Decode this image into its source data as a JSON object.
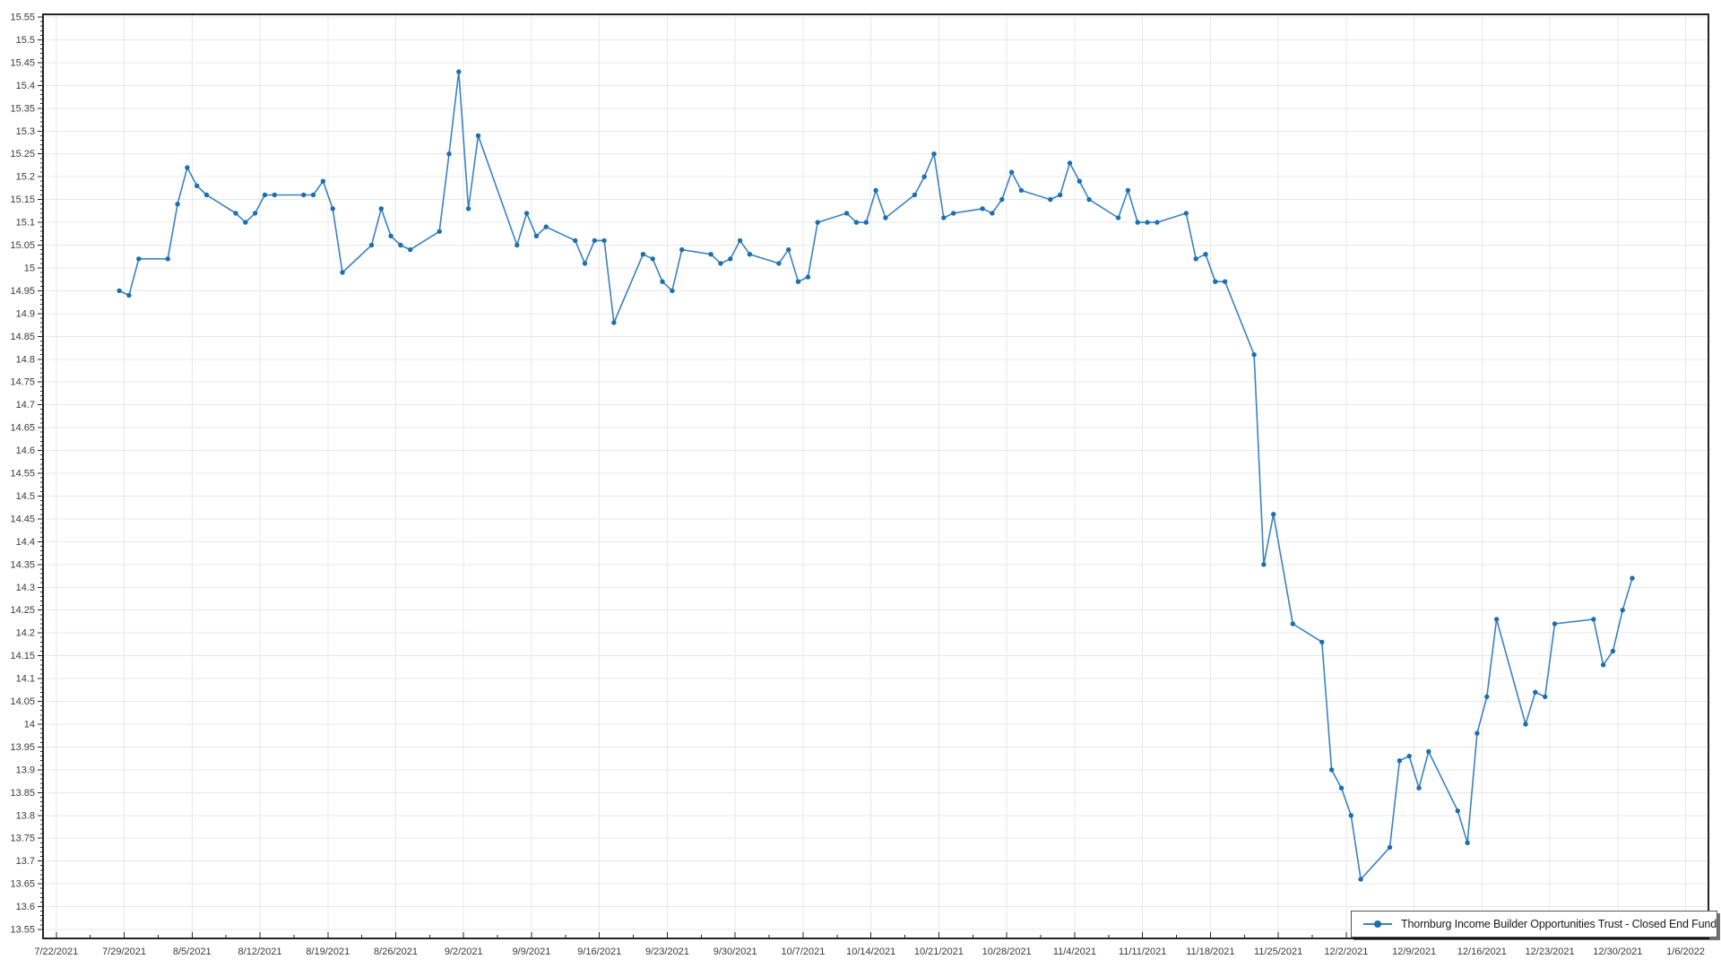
{
  "chart_data": {
    "type": "line",
    "title": "",
    "legend_position": "bottom-right",
    "grid": true,
    "line_color": "#3b82c2",
    "marker_color": "#1c6fae",
    "grid_color": "#e8e8e8",
    "axis_color": "#242424",
    "tick_label_color": "#3a3a3a",
    "y_axis": {
      "min": 13.55,
      "max": 15.55,
      "step": 0.05
    },
    "x_axis": {
      "start": "7/22/2021",
      "end": "1/6/2022",
      "tick_interval_days": 7,
      "tick_labels": [
        "7/22/2021",
        "7/29/2021",
        "8/5/2021",
        "8/12/2021",
        "8/19/2021",
        "8/26/2021",
        "9/2/2021",
        "9/9/2021",
        "9/16/2021",
        "9/23/2021",
        "9/30/2021",
        "10/7/2021",
        "10/14/2021",
        "10/21/2021",
        "10/28/2021",
        "11/4/2021",
        "11/11/2021",
        "11/18/2021",
        "11/25/2021",
        "12/2/2021",
        "12/9/2021",
        "12/16/2021",
        "12/23/2021",
        "12/30/2021",
        "1/6/2022"
      ]
    },
    "series": [
      {
        "name": "Thornburg Income Builder Opportunities Trust - Closed End Fund",
        "dates": [
          "7/28/2021",
          "7/29/2021",
          "7/30/2021",
          "8/2/2021",
          "8/3/2021",
          "8/4/2021",
          "8/5/2021",
          "8/6/2021",
          "8/9/2021",
          "8/10/2021",
          "8/11/2021",
          "8/12/2021",
          "8/13/2021",
          "8/16/2021",
          "8/17/2021",
          "8/18/2021",
          "8/19/2021",
          "8/20/2021",
          "8/23/2021",
          "8/24/2021",
          "8/25/2021",
          "8/26/2021",
          "8/27/2021",
          "8/30/2021",
          "8/31/2021",
          "9/1/2021",
          "9/2/2021",
          "9/3/2021",
          "9/7/2021",
          "9/8/2021",
          "9/9/2021",
          "9/10/2021",
          "9/13/2021",
          "9/14/2021",
          "9/15/2021",
          "9/16/2021",
          "9/17/2021",
          "9/20/2021",
          "9/21/2021",
          "9/22/2021",
          "9/23/2021",
          "9/24/2021",
          "9/27/2021",
          "9/28/2021",
          "9/29/2021",
          "9/30/2021",
          "10/1/2021",
          "10/4/2021",
          "10/5/2021",
          "10/6/2021",
          "10/7/2021",
          "10/8/2021",
          "10/11/2021",
          "10/12/2021",
          "10/13/2021",
          "10/14/2021",
          "10/15/2021",
          "10/18/2021",
          "10/19/2021",
          "10/20/2021",
          "10/21/2021",
          "10/22/2021",
          "10/25/2021",
          "10/26/2021",
          "10/27/2021",
          "10/28/2021",
          "10/29/2021",
          "11/1/2021",
          "11/2/2021",
          "11/3/2021",
          "11/4/2021",
          "11/5/2021",
          "11/8/2021",
          "11/9/2021",
          "11/10/2021",
          "11/11/2021",
          "11/12/2021",
          "11/15/2021",
          "11/16/2021",
          "11/17/2021",
          "11/18/2021",
          "11/19/2021",
          "11/22/2021",
          "11/23/2021",
          "11/24/2021",
          "11/26/2021",
          "11/29/2021",
          "11/30/2021",
          "12/1/2021",
          "12/2/2021",
          "12/3/2021",
          "12/6/2021",
          "12/7/2021",
          "12/8/2021",
          "12/9/2021",
          "12/10/2021",
          "12/13/2021",
          "12/14/2021",
          "12/15/2021",
          "12/16/2021",
          "12/17/2021",
          "12/20/2021",
          "12/21/2021",
          "12/22/2021",
          "12/23/2021",
          "12/27/2021",
          "12/28/2021",
          "12/29/2021",
          "12/30/2021",
          "12/31/2021"
        ],
        "values": [
          14.95,
          14.94,
          15.02,
          15.02,
          15.14,
          15.22,
          15.18,
          15.16,
          15.12,
          15.1,
          15.12,
          15.16,
          15.16,
          15.16,
          15.16,
          15.19,
          15.13,
          14.99,
          15.05,
          15.13,
          15.07,
          15.05,
          15.04,
          15.08,
          15.25,
          15.43,
          15.13,
          15.29,
          15.05,
          15.12,
          15.07,
          15.09,
          15.06,
          15.01,
          15.06,
          15.06,
          14.88,
          15.03,
          15.02,
          14.97,
          14.95,
          15.04,
          15.03,
          15.01,
          15.02,
          15.06,
          15.03,
          15.01,
          15.04,
          14.97,
          14.98,
          15.1,
          15.12,
          15.1,
          15.1,
          15.17,
          15.11,
          15.16,
          15.2,
          15.25,
          15.11,
          15.12,
          15.13,
          15.12,
          15.15,
          15.21,
          15.17,
          15.15,
          15.16,
          15.23,
          15.19,
          15.15,
          15.11,
          15.17,
          15.1,
          15.1,
          15.1,
          15.12,
          15.02,
          15.03,
          14.97,
          14.97,
          14.81,
          14.35,
          14.46,
          14.22,
          14.18,
          13.9,
          13.86,
          13.8,
          13.66,
          13.73,
          13.92,
          13.93,
          13.86,
          13.94,
          13.81,
          13.74,
          13.98,
          14.06,
          14.23,
          14.0,
          14.07,
          14.06,
          14.22,
          14.23,
          14.13,
          14.16,
          14.25,
          14.32
        ]
      }
    ]
  },
  "legend": {
    "label": "Thornburg Income Builder Opportunities Trust - Closed End Fund"
  }
}
